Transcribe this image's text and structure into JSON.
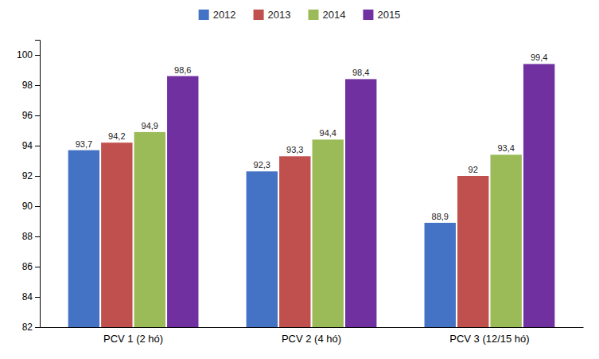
{
  "chart_data": {
    "type": "bar",
    "categories": [
      "PCV 1 (2 hó)",
      "PCV 2 (4 hó)",
      "PCV 3 (12/15 hó)"
    ],
    "series": [
      {
        "name": "2012",
        "color": "#4472C4",
        "values": [
          93.7,
          92.3,
          88.9
        ],
        "value_labels": [
          "93,7",
          "92,3",
          "88,9"
        ]
      },
      {
        "name": "2013",
        "color": "#C0504D",
        "values": [
          94.2,
          93.3,
          92.0
        ],
        "value_labels": [
          "94,2",
          "93,3",
          "92"
        ]
      },
      {
        "name": "2014",
        "color": "#9BBB59",
        "values": [
          94.9,
          94.4,
          93.4
        ],
        "value_labels": [
          "94,9",
          "94,4",
          "93,4"
        ]
      },
      {
        "name": "2015",
        "color": "#7030A0",
        "values": [
          98.6,
          98.4,
          99.4
        ],
        "value_labels": [
          "98,6",
          "98,4",
          "99,4"
        ]
      }
    ],
    "ylim": [
      82,
      101
    ],
    "yticks": [
      82,
      84,
      86,
      88,
      90,
      92,
      94,
      96,
      98,
      100
    ],
    "grid": false,
    "legend": "top",
    "data_labels": true
  }
}
